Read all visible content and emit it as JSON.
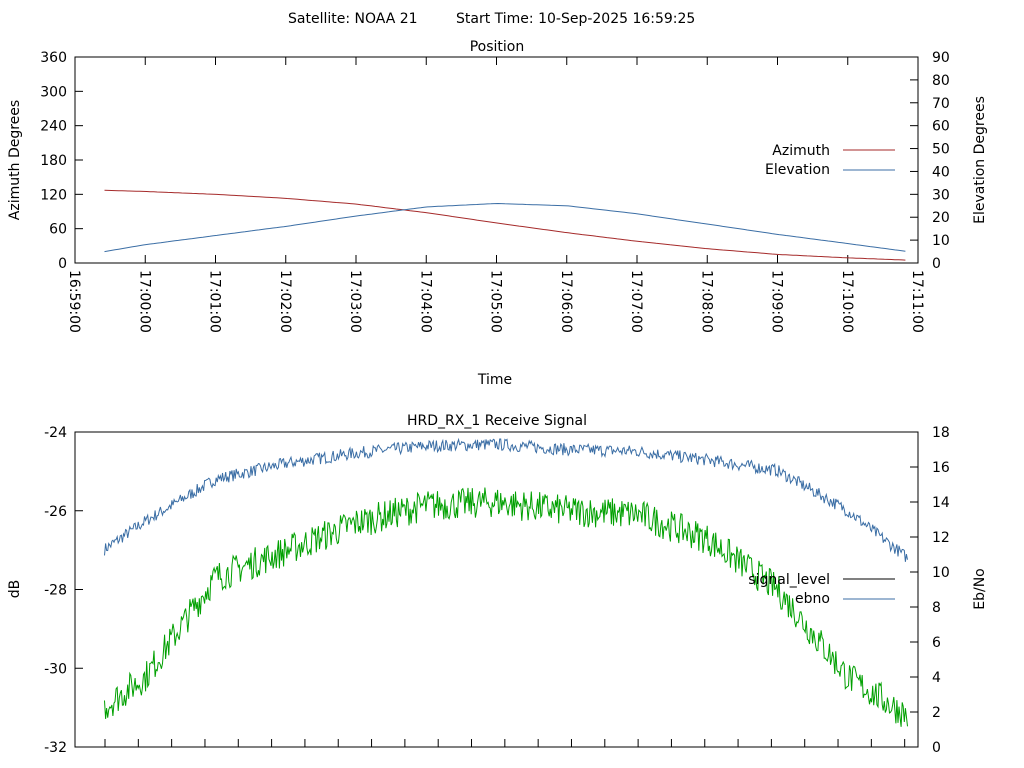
{
  "header": {
    "satellite": "Satellite: NOAA 21",
    "start_time": "Start Time: 10-Sep-2025 16:59:25"
  },
  "chart_data": [
    {
      "type": "line",
      "title": "Position",
      "xlabel": "Time",
      "ylabel": "Azimuth Degrees",
      "y2label": "Elevation Degrees",
      "ylim": [
        0,
        360
      ],
      "y2lim": [
        0,
        90
      ],
      "yticks": [
        "0",
        "60",
        "120",
        "180",
        "240",
        "300",
        "360"
      ],
      "y2ticks": [
        "0",
        "10",
        "20",
        "30",
        "40",
        "50",
        "60",
        "70",
        "80",
        "90"
      ],
      "xticks": [
        "16:59:00",
        "17:00:00",
        "17:01:00",
        "17:02:00",
        "17:03:00",
        "17:04:00",
        "17:05:00",
        "17:06:00",
        "17:07:00",
        "17:08:00",
        "17:09:00",
        "17:10:00",
        "17:11:00"
      ],
      "x_minutes": [
        0.42,
        1,
        2,
        3,
        4,
        5,
        6,
        7,
        8,
        9,
        10,
        11,
        11.85
      ],
      "series": [
        {
          "name": "Azimuth",
          "axis": "left",
          "color": "#a52a2a",
          "values": [
            127,
            125,
            120,
            113,
            103,
            88,
            70,
            53,
            38,
            25,
            15,
            9,
            5
          ]
        },
        {
          "name": "Elevation",
          "axis": "right",
          "color": "#3b6ea5",
          "values": [
            5,
            8,
            12,
            16,
            20.5,
            24.5,
            26,
            25,
            21.5,
            17,
            12.5,
            8.5,
            5
          ]
        }
      ],
      "legend": "right"
    },
    {
      "type": "line",
      "title": "HRD_RX_1 Receive Signal",
      "ylabel": "dB",
      "y2label": "Eb/No",
      "ylim": [
        -32,
        -24
      ],
      "y2lim": [
        0,
        18
      ],
      "yticks": [
        "-32",
        "-30",
        "-28",
        "-26",
        "-24"
      ],
      "y2ticks": [
        "0",
        "2",
        "4",
        "6",
        "8",
        "10",
        "12",
        "14",
        "16",
        "18"
      ],
      "x_minutes": [
        0.42,
        1,
        2,
        3,
        4,
        5,
        6,
        7,
        8,
        9,
        10,
        11,
        11.85
      ],
      "series": [
        {
          "name": "signal_level",
          "axis": "left",
          "color": "#000000",
          "values": []
        },
        {
          "name": "ebno",
          "axis": "right",
          "color": "#3b6ea5",
          "values": [
            11.3,
            12.9,
            15.3,
            16.2,
            16.8,
            17.2,
            17.3,
            17.0,
            16.9,
            16.4,
            15.8,
            13.5,
            10.8
          ]
        },
        {
          "name": "",
          "axis": "right",
          "color": "#00a000",
          "values": [
            2.3,
            4.0,
            9.7,
            11.2,
            12.8,
            13.8,
            14.0,
            13.5,
            13.3,
            11.9,
            9.0,
            4.0,
            1.8
          ]
        }
      ],
      "legend": "right"
    }
  ]
}
